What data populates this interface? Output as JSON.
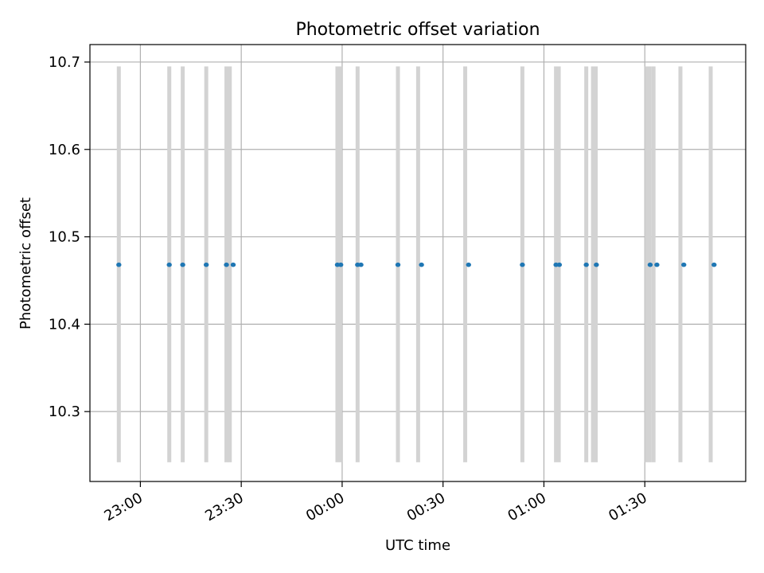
{
  "chart_data": {
    "type": "scatter",
    "title": "Photometric offset variation",
    "xlabel": "UTC time",
    "ylabel": "Photometric offset",
    "x_axis": {
      "kind": "time",
      "range": [
        "22:45",
        "02:00"
      ],
      "ticks": [
        "23:00",
        "23:30",
        "00:00",
        "00:30",
        "01:00",
        "01:30"
      ],
      "tick_rotation_deg": 30
    },
    "y_axis": {
      "range": [
        10.22,
        10.72
      ],
      "ticks": [
        "10.3",
        "10.4",
        "10.5",
        "10.6",
        "10.7"
      ],
      "tick_values": [
        10.3,
        10.4,
        10.5,
        10.6,
        10.7
      ]
    },
    "grid": true,
    "series": [
      {
        "values": [
          {
            "x": "22:53",
            "y": 10.468
          },
          {
            "x": "23:08",
            "y": 10.468
          },
          {
            "x": "23:12",
            "y": 10.468
          },
          {
            "x": "23:19",
            "y": 10.468
          },
          {
            "x": "23:25",
            "y": 10.468
          },
          {
            "x": "23:27",
            "y": 10.468
          },
          {
            "x": "23:58",
            "y": 10.468
          },
          {
            "x": "23:59",
            "y": 10.468
          },
          {
            "x": "00:04",
            "y": 10.468
          },
          {
            "x": "00:05",
            "y": 10.468
          },
          {
            "x": "00:16",
            "y": 10.468
          },
          {
            "x": "00:23",
            "y": 10.468
          },
          {
            "x": "00:37",
            "y": 10.468
          },
          {
            "x": "00:53",
            "y": 10.468
          },
          {
            "x": "01:03",
            "y": 10.468
          },
          {
            "x": "01:04",
            "y": 10.468
          },
          {
            "x": "01:12",
            "y": 10.468
          },
          {
            "x": "01:15",
            "y": 10.468
          },
          {
            "x": "01:31",
            "y": 10.468
          },
          {
            "x": "01:33",
            "y": 10.468
          },
          {
            "x": "01:41",
            "y": 10.468
          },
          {
            "x": "01:50",
            "y": 10.468
          }
        ],
        "color": "#1f77b4"
      }
    ],
    "vertical_bands": {
      "color": "#d3d3d3",
      "y_range": [
        10.242,
        10.695
      ],
      "bands": [
        {
          "start": "22:53",
          "end": "22:54"
        },
        {
          "start": "23:08",
          "end": "23:09"
        },
        {
          "start": "23:12",
          "end": "23:13"
        },
        {
          "start": "23:19",
          "end": "23:20"
        },
        {
          "start": "23:25",
          "end": "23:26"
        },
        {
          "start": "23:26",
          "end": "23:27"
        },
        {
          "start": "23:58",
          "end": "00:00"
        },
        {
          "start": "00:04",
          "end": "00:05"
        },
        {
          "start": "00:16",
          "end": "00:17"
        },
        {
          "start": "00:22",
          "end": "00:23"
        },
        {
          "start": "00:36",
          "end": "00:37"
        },
        {
          "start": "00:53",
          "end": "00:54"
        },
        {
          "start": "01:03",
          "end": "01:05"
        },
        {
          "start": "01:12",
          "end": "01:13"
        },
        {
          "start": "01:14",
          "end": "01:16"
        },
        {
          "start": "01:30",
          "end": "01:32"
        },
        {
          "start": "01:32",
          "end": "01:33"
        },
        {
          "start": "01:40",
          "end": "01:41"
        },
        {
          "start": "01:49",
          "end": "01:50"
        }
      ]
    }
  }
}
